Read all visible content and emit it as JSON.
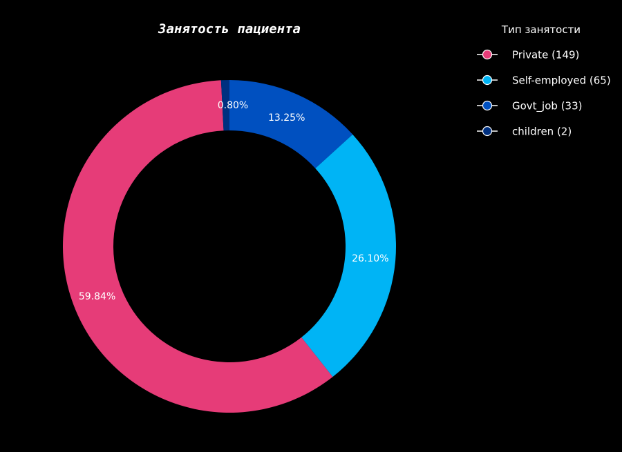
{
  "chart_data": {
    "type": "pie",
    "title": "Занятость пациента",
    "legend_title": "Тип занятости",
    "legend_position": "top-right",
    "start_angle": "top, clockwise",
    "slices": [
      {
        "label": "Private (149)",
        "category": "Private",
        "count": 149,
        "percent": 59.84,
        "percent_label": "59.84%",
        "color": "#e63c78"
      },
      {
        "label": "Self-employed (65)",
        "category": "Self-employed",
        "count": 65,
        "percent": 26.1,
        "percent_label": "26.10%",
        "color": "#00b4f5"
      },
      {
        "label": "Govt_job (33)",
        "category": "Govt_job",
        "count": 33,
        "percent": 13.25,
        "percent_label": "13.25%",
        "color": "#0050c0"
      },
      {
        "label": "children (2)",
        "category": "children",
        "count": 2,
        "percent": 0.8,
        "percent_label": "0.80%",
        "color": "#003080"
      }
    ]
  }
}
